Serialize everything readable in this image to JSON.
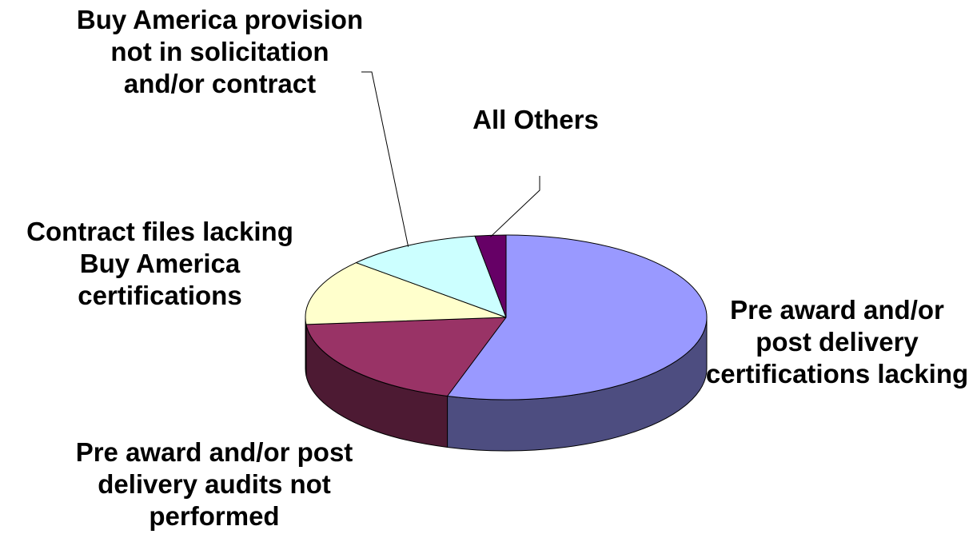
{
  "chart_data": {
    "type": "pie",
    "style": "3d",
    "slices": [
      {
        "label": "Pre award and/or post delivery certifications lacking",
        "value": 55,
        "color": "#9999ff",
        "side_color": "#4d4d80"
      },
      {
        "label": "Pre award and/or post delivery audits not performed",
        "value": 19,
        "color": "#993366",
        "side_color": "#4d1a33"
      },
      {
        "label": "Contract files lacking Buy America certifications",
        "value": 13,
        "color": "#ffffcc",
        "side_color": "#808066"
      },
      {
        "label": "Buy America provision not in solicitation and/or contract",
        "value": 11,
        "color": "#ccffff",
        "side_color": "#668080"
      },
      {
        "label": "All Others",
        "value": 2.5,
        "color": "#660066",
        "side_color": "#330033"
      }
    ],
    "legend": "none",
    "title": ""
  }
}
